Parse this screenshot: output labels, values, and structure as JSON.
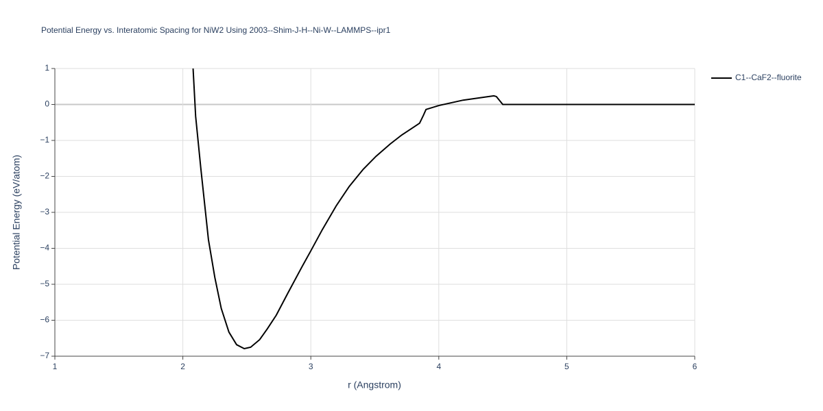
{
  "chart_data": {
    "type": "line",
    "title": "Potential Energy vs. Interatomic Spacing for NiW2 Using 2003--Shim-J-H--Ni-W--LAMMPS--ipr1",
    "x_label": "r (Angstrom)",
    "y_label": "Potential Energy (eV/atom)",
    "x": [
      2.08,
      2.1,
      2.14,
      2.2,
      2.25,
      2.3,
      2.36,
      2.42,
      2.48,
      2.53,
      2.6,
      2.66,
      2.73,
      2.82,
      2.93,
      3.0,
      3.09,
      3.2,
      3.3,
      3.41,
      3.51,
      3.62,
      3.71,
      3.8,
      3.85,
      3.88,
      3.9,
      4.0,
      4.19,
      4.35,
      4.43,
      4.45,
      4.5,
      5.0,
      5.5,
      6.0
    ],
    "series": [
      {
        "name": "C1--CaF2--fluorite",
        "color": "#000000",
        "values": [
          1,
          -0.33,
          -1.76,
          -3.76,
          -4.81,
          -5.67,
          -6.33,
          -6.68,
          -6.79,
          -6.75,
          -6.54,
          -6.24,
          -5.86,
          -5.25,
          -4.52,
          -4.07,
          -3.48,
          -2.81,
          -2.28,
          -1.8,
          -1.44,
          -1.1,
          -0.85,
          -0.64,
          -0.52,
          -0.3,
          -0.14,
          -0.03,
          0.12,
          0.2,
          0.24,
          0.22,
          0,
          0,
          0,
          0
        ]
      }
    ],
    "xlim": [
      1,
      6
    ],
    "xticks": [
      1,
      2,
      3,
      4,
      5,
      6
    ],
    "ylim": [
      -7,
      1
    ],
    "yticks": [
      {
        "value": -7,
        "label": "−7"
      },
      {
        "value": -6,
        "label": "−6"
      },
      {
        "value": -5,
        "label": "−5"
      },
      {
        "value": -4,
        "label": "−4"
      },
      {
        "value": -3,
        "label": "−3"
      },
      {
        "value": -2,
        "label": "−2"
      },
      {
        "value": -1,
        "label": "−1"
      },
      0,
      1
    ],
    "grid": true,
    "legend": "top-right"
  }
}
